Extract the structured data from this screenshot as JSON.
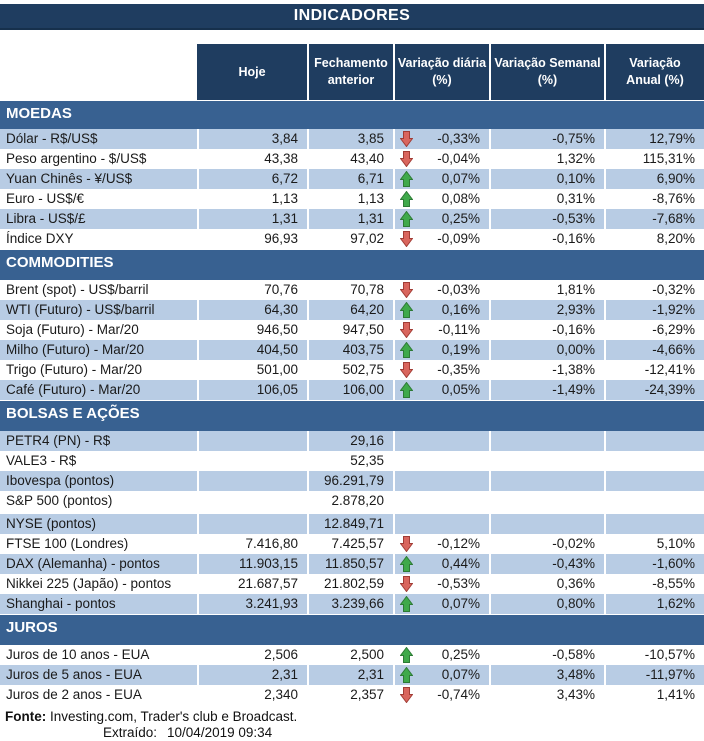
{
  "title": "INDICADORES",
  "columns": [
    {
      "id": "hoje",
      "lines": [
        "Hoje"
      ]
    },
    {
      "id": "fechamento",
      "lines": [
        "Fechamento",
        "anterior"
      ]
    },
    {
      "id": "var-diaria",
      "lines": [
        "Variação diária",
        "(%)"
      ]
    },
    {
      "id": "var-semanal",
      "lines": [
        "Variação Semanal",
        "(%)"
      ]
    },
    {
      "id": "var-anual",
      "lines": [
        "Variação",
        "Anual (%)"
      ]
    }
  ],
  "sections": [
    {
      "name": "MOEDAS",
      "first_row_shaded": true,
      "rows": [
        {
          "label": "Dólar - R$/US$",
          "hoje": "3,84",
          "fechamento": "3,85",
          "arrow": "down",
          "var_diaria": "-0,33%",
          "var_semanal": "-0,75%",
          "var_anual": "12,79%"
        },
        {
          "label": "Peso argentino - $/US$",
          "hoje": "43,38",
          "fechamento": "43,40",
          "arrow": "down",
          "var_diaria": "-0,04%",
          "var_semanal": "1,32%",
          "var_anual": "115,31%"
        },
        {
          "label": "Yuan Chinês - ¥/US$",
          "hoje": "6,72",
          "fechamento": "6,71",
          "arrow": "up",
          "var_diaria": "0,07%",
          "var_semanal": "0,10%",
          "var_anual": "6,90%"
        },
        {
          "label": "Euro - US$/€",
          "hoje": "1,13",
          "fechamento": "1,13",
          "arrow": "up",
          "var_diaria": "0,08%",
          "var_semanal": "0,31%",
          "var_anual": "-8,76%"
        },
        {
          "label": "Libra - US$/£",
          "hoje": "1,31",
          "fechamento": "1,31",
          "arrow": "up",
          "var_diaria": "0,25%",
          "var_semanal": "-0,53%",
          "var_anual": "-7,68%"
        },
        {
          "label": "Índice DXY",
          "hoje": "96,93",
          "fechamento": "97,02",
          "arrow": "down",
          "var_diaria": "-0,09%",
          "var_semanal": "-0,16%",
          "var_anual": "8,20%"
        }
      ]
    },
    {
      "name": "COMMODITIES",
      "first_row_shaded": false,
      "rows": [
        {
          "label": "Brent (spot) - US$/barril",
          "hoje": "70,76",
          "fechamento": "70,78",
          "arrow": "down",
          "var_diaria": "-0,03%",
          "var_semanal": "1,81%",
          "var_anual": "-0,32%"
        },
        {
          "label": "WTI (Futuro) - US$/barril",
          "hoje": "64,30",
          "fechamento": "64,20",
          "arrow": "up",
          "var_diaria": "0,16%",
          "var_semanal": "2,93%",
          "var_anual": "-1,92%"
        },
        {
          "label": "Soja (Futuro) - Mar/20",
          "hoje": "946,50",
          "fechamento": "947,50",
          "arrow": "down",
          "var_diaria": "-0,11%",
          "var_semanal": "-0,16%",
          "var_anual": "-6,29%"
        },
        {
          "label": "Milho (Futuro) - Mar/20",
          "hoje": "404,50",
          "fechamento": "403,75",
          "arrow": "up",
          "var_diaria": "0,19%",
          "var_semanal": "0,00%",
          "var_anual": "-4,66%"
        },
        {
          "label": "Trigo (Futuro) - Mar/20",
          "hoje": "501,00",
          "fechamento": "502,75",
          "arrow": "down",
          "var_diaria": "-0,35%",
          "var_semanal": "-1,38%",
          "var_anual": "-12,41%"
        },
        {
          "label": "Café (Futuro) - Mar/20",
          "hoje": "106,05",
          "fechamento": "106,00",
          "arrow": "up",
          "var_diaria": "0,05%",
          "var_semanal": "-1,49%",
          "var_anual": "-24,39%"
        }
      ]
    },
    {
      "name": "BOLSAS E AÇÕES",
      "first_row_shaded": true,
      "rows": [
        {
          "label": "PETR4 (PN) - R$",
          "hoje": "",
          "fechamento": "29,16",
          "arrow": null,
          "var_diaria": "",
          "var_semanal": "",
          "var_anual": ""
        },
        {
          "label": "VALE3 - R$",
          "hoje": "",
          "fechamento": "52,35",
          "arrow": null,
          "var_diaria": "",
          "var_semanal": "",
          "var_anual": ""
        },
        {
          "label": "Ibovespa (pontos)",
          "hoje": "",
          "fechamento": "96.291,79",
          "arrow": null,
          "var_diaria": "",
          "var_semanal": "",
          "var_anual": ""
        },
        {
          "label": "S&P 500 (pontos)",
          "hoje": "",
          "fechamento": "2.878,20",
          "arrow": null,
          "var_diaria": "",
          "var_semanal": "",
          "var_anual": "",
          "spacer_after": true
        },
        {
          "label": "NYSE (pontos)",
          "hoje": "",
          "fechamento": "12.849,71",
          "arrow": null,
          "var_diaria": "",
          "var_semanal": "",
          "var_anual": ""
        },
        {
          "label": "FTSE 100 (Londres)",
          "hoje": "7.416,80",
          "fechamento": "7.425,57",
          "arrow": "down",
          "var_diaria": "-0,12%",
          "var_semanal": "-0,02%",
          "var_anual": "5,10%"
        },
        {
          "label": "DAX (Alemanha) - pontos",
          "hoje": "11.903,15",
          "fechamento": "11.850,57",
          "arrow": "up",
          "var_diaria": "0,44%",
          "var_semanal": "-0,43%",
          "var_anual": "-1,60%"
        },
        {
          "label": "Nikkei 225 (Japão) - pontos",
          "hoje": "21.687,57",
          "fechamento": "21.802,59",
          "arrow": "down",
          "var_diaria": "-0,53%",
          "var_semanal": "0,36%",
          "var_anual": "-8,55%"
        },
        {
          "label": "Shanghai - pontos",
          "hoje": "3.241,93",
          "fechamento": "3.239,66",
          "arrow": "up",
          "var_diaria": "0,07%",
          "var_semanal": "0,80%",
          "var_anual": "1,62%"
        }
      ]
    },
    {
      "name": "JUROS",
      "first_row_shaded": false,
      "rows": [
        {
          "label": "Juros de 10 anos - EUA",
          "hoje": "2,506",
          "fechamento": "2,500",
          "arrow": "up",
          "var_diaria": "0,25%",
          "var_semanal": "-0,58%",
          "var_anual": "-10,57%"
        },
        {
          "label": "Juros de 5 anos - EUA",
          "hoje": "2,31",
          "fechamento": "2,31",
          "arrow": "up",
          "var_diaria": "0,07%",
          "var_semanal": "3,48%",
          "var_anual": "-11,97%"
        },
        {
          "label": "Juros de 2 anos - EUA",
          "hoje": "2,340",
          "fechamento": "2,357",
          "arrow": "down",
          "var_diaria": "-0,74%",
          "var_semanal": "3,43%",
          "var_anual": "1,41%"
        }
      ]
    }
  ],
  "footer": {
    "fonte_label": "Fonte:",
    "fonte_text": "Investing.com, Trader's club e Broadcast.",
    "extraido_label": "Extraído:",
    "extraido_value": "10/04/2019 09:34"
  },
  "colors": {
    "navy": "#1F3D60",
    "steel_blue": "#386191",
    "row_shaded": "#B8CCE4",
    "arrow_up_fill": "#3FA94A",
    "arrow_up_border": "#2D7A35",
    "arrow_down_fill": "#D9655D",
    "arrow_down_border": "#A13C35"
  }
}
